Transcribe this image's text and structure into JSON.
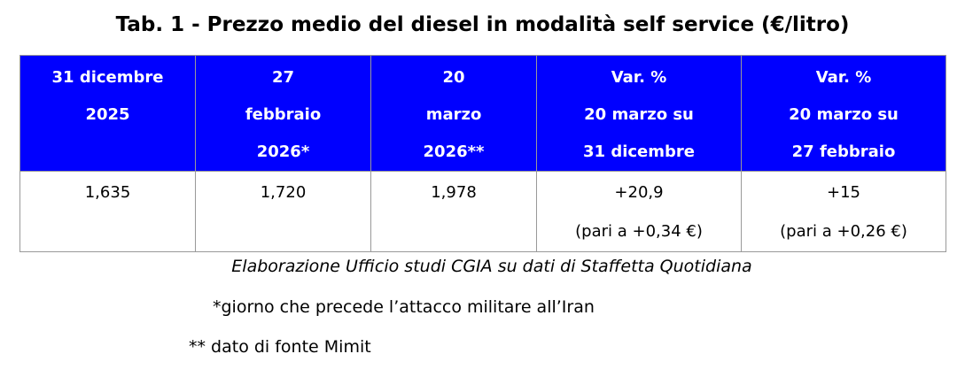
{
  "header": {
    "title": "Tab. 1 - Prezzo medio del diesel in modalità self service (€/litro)"
  },
  "table": {
    "columns": [
      [
        "31 dicembre",
        "2025"
      ],
      [
        "27",
        "febbraio",
        "2026*"
      ],
      [
        "20",
        "marzo",
        "2026**"
      ],
      [
        "Var. %",
        "20 marzo su",
        "31 dicembre"
      ],
      [
        "Var. %",
        "20 marzo su",
        "27 febbraio"
      ]
    ],
    "rows": [
      [
        [
          "1,635"
        ],
        [
          "1,720"
        ],
        [
          "1,978"
        ],
        [
          "+20,9",
          "(pari a +0,34 €)"
        ],
        [
          "+15",
          "(pari a +0,26 €)"
        ]
      ]
    ]
  },
  "footer": {
    "source": "Elaborazione Ufficio studi CGIA su dati di Staffetta Quotidiana",
    "notes": [
      "*giorno che precede l’attacco militare all’Iran",
      "** dato di fonte Mimit"
    ]
  }
}
